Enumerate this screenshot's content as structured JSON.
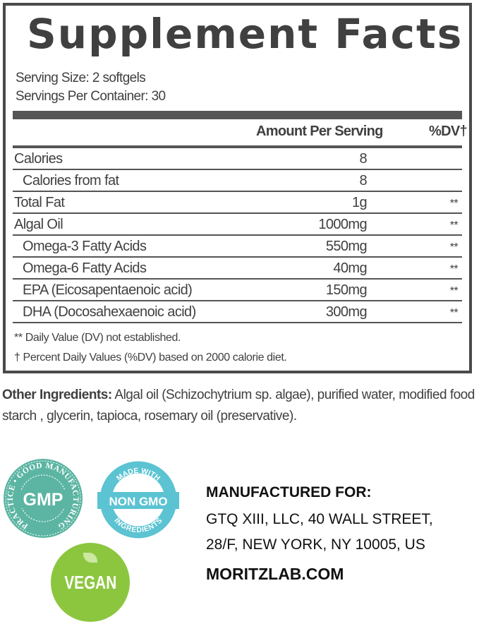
{
  "title": "Supplement Facts",
  "serving_size": "Serving Size: 2 softgels",
  "servings_per_container": "Servings Per Container: 30",
  "header": {
    "amount": "Amount Per Serving",
    "dv": "%DV†"
  },
  "rows": [
    {
      "label": "Calories",
      "amount": "8",
      "dv": "",
      "indent": false
    },
    {
      "label": "Calories from fat",
      "amount": "8",
      "dv": "",
      "indent": true
    },
    {
      "label": "Total Fat",
      "amount": "1g",
      "dv": "**",
      "indent": false
    },
    {
      "label": "Algal Oil",
      "amount": "1000mg",
      "dv": "**",
      "indent": false
    },
    {
      "label": "Omega-3 Fatty Acids",
      "amount": "550mg",
      "dv": "**",
      "indent": true
    },
    {
      "label": "Omega-6 Fatty Acids",
      "amount": "40mg",
      "dv": "**",
      "indent": true
    },
    {
      "label": "EPA (Eicosapentaenoic acid)",
      "amount": "150mg",
      "dv": "**",
      "indent": true
    },
    {
      "label": "DHA (Docosahexaenoic acid)",
      "amount": "300mg",
      "dv": "**",
      "indent": true
    }
  ],
  "footnotes": [
    "** Daily Value (DV) not established.",
    "†  Percent Daily Values (%DV) based on 2000 calorie diet."
  ],
  "other_ingredients": {
    "label": "Other Ingredients:",
    "text": " Algal oil (Schizochytrium sp. algae), purified water, modified food starch , glycerin, tapioca, rosemary oil (preservative)."
  },
  "badges": {
    "gmp": {
      "text": "GMP",
      "ring": "PRACTICE • GOOD MANUFACTURING",
      "color": "#5bb5a2"
    },
    "nongmo": {
      "top": "MADE WITH",
      "main": "NON GMO",
      "bottom": "INGREDIENTS",
      "color": "#5bc3d2"
    },
    "vegan": {
      "text": "VEGAN",
      "color": "#8cc63f"
    }
  },
  "manufacturer": {
    "heading": "MANUFACTURED FOR:",
    "line1": "GTQ XIII, LLC, 40 WALL STREET,",
    "line2": "28/F, NEW YORK, NY 10005, US",
    "website": "MORITZLAB.COM"
  }
}
